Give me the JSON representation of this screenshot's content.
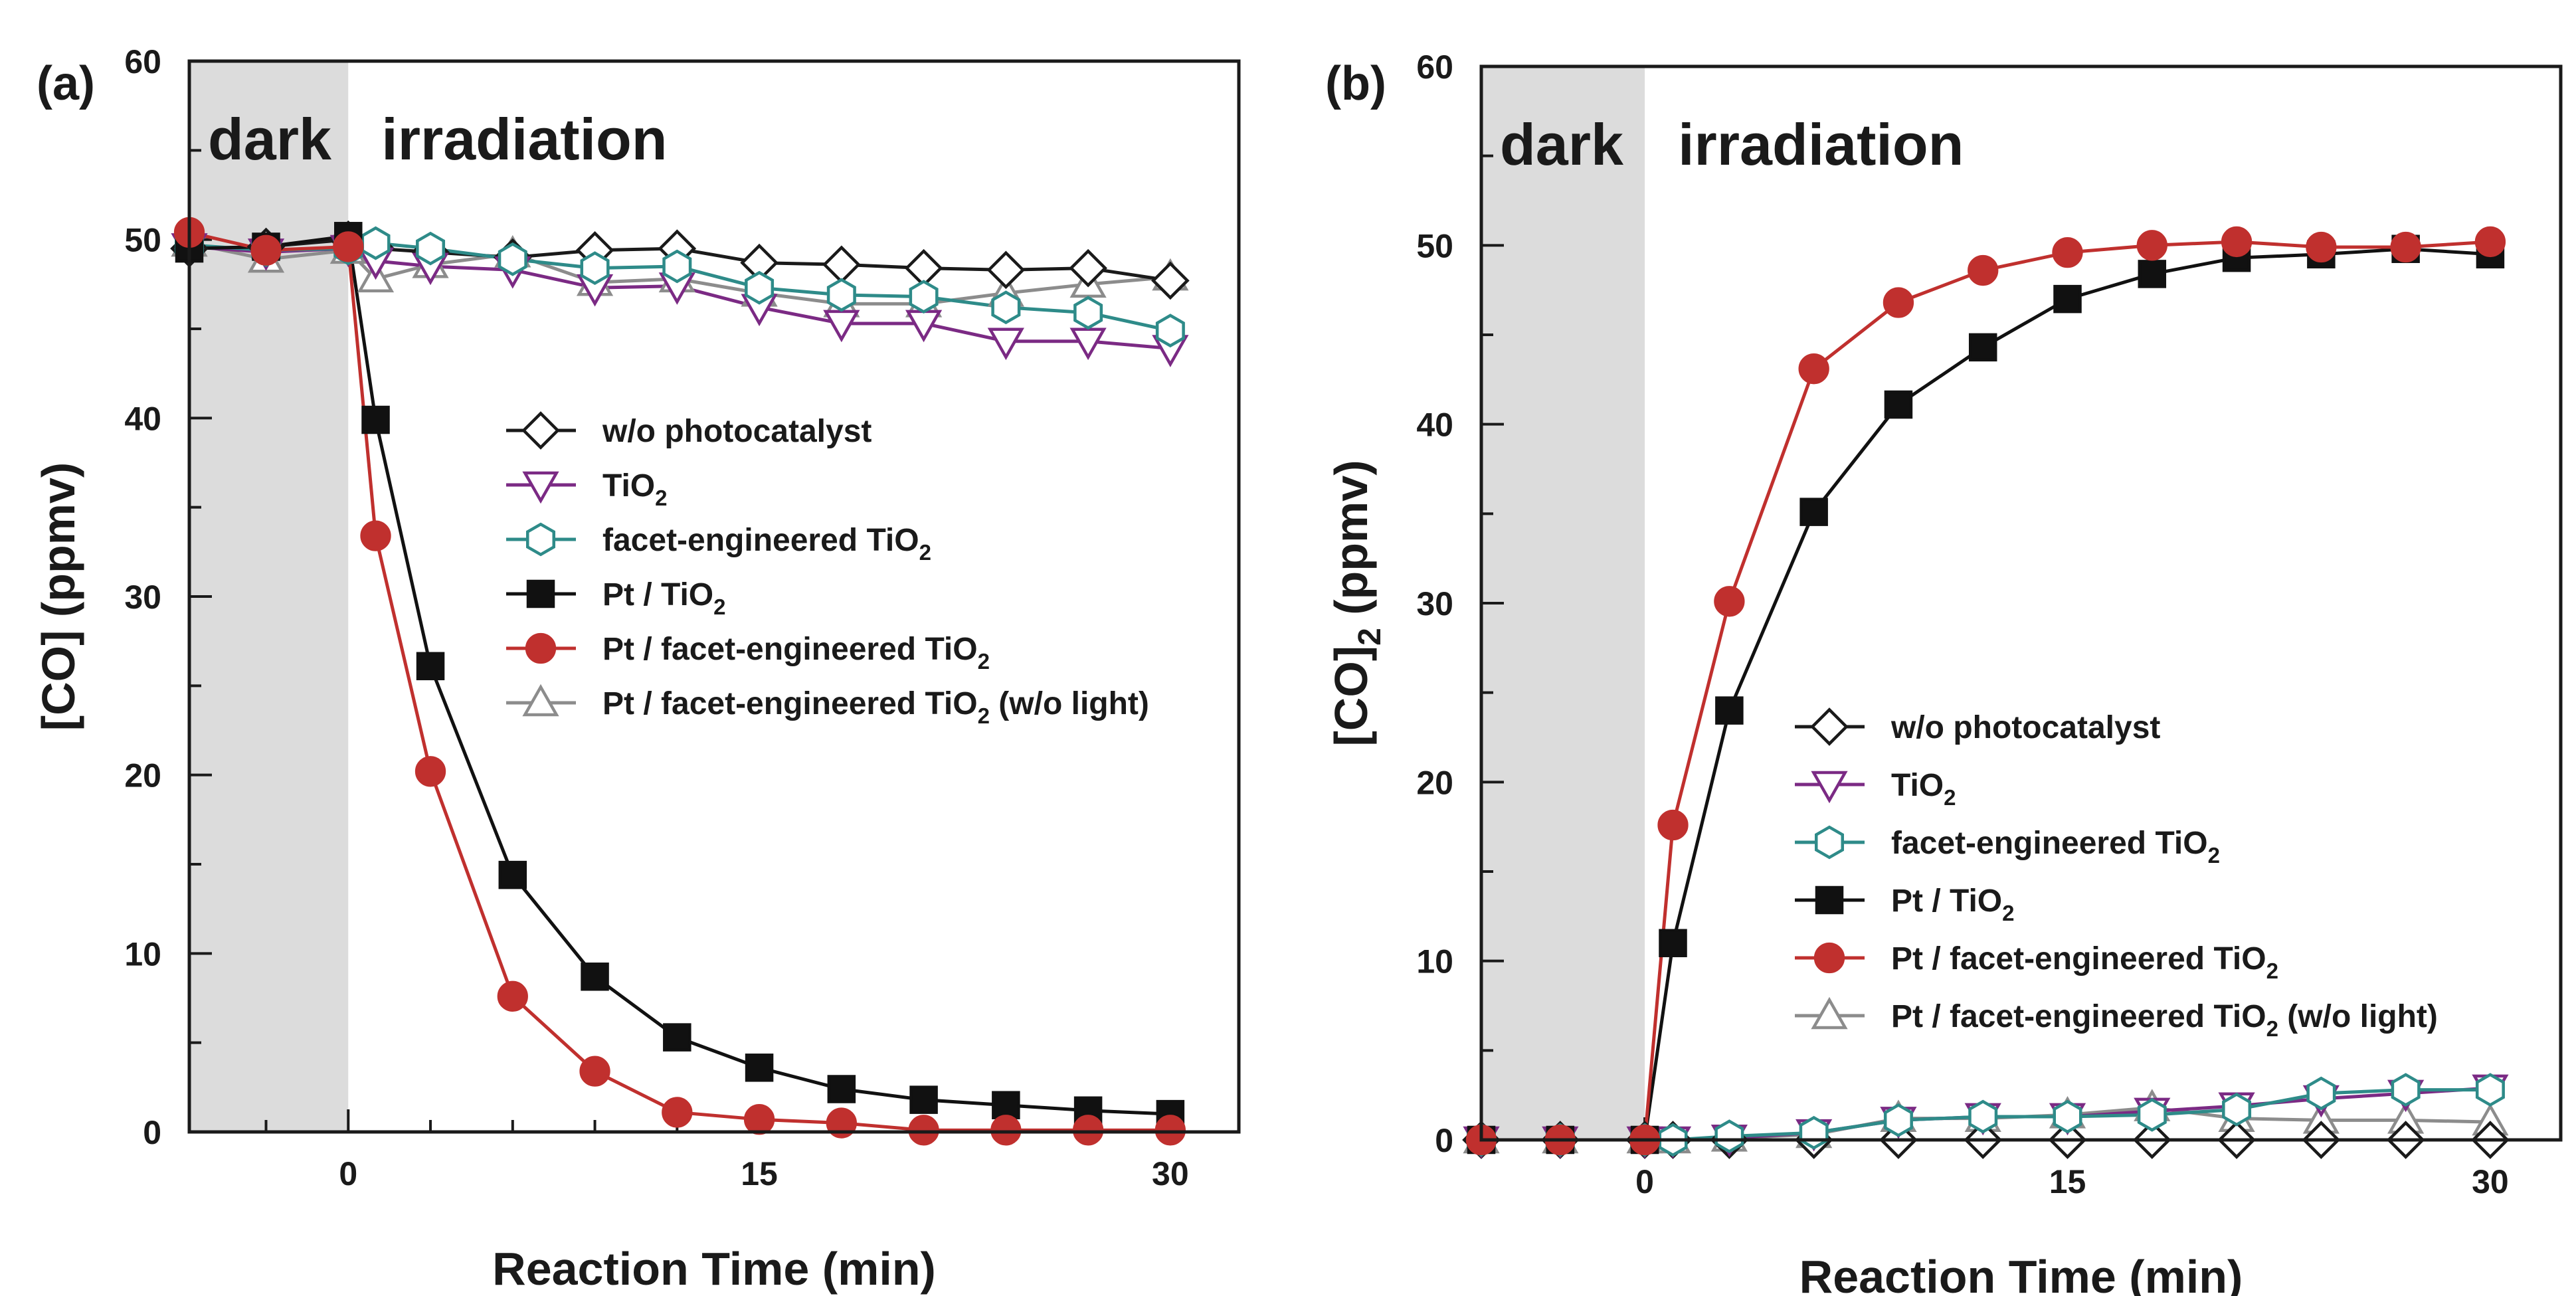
{
  "chart_data": [
    {
      "type": "line",
      "panel_label": "(a)",
      "region_labels": {
        "dark": "dark",
        "irradiation": "irradiation"
      },
      "xlabel": "Reaction Time (min)",
      "ylabel": "[CO] (ppmv)",
      "xlim": [
        -5.8,
        32.5
      ],
      "ylim": [
        0,
        60
      ],
      "xticks": [
        "0",
        "15",
        "30"
      ],
      "yticks": [
        "0",
        "10",
        "20",
        "30",
        "40",
        "50",
        "60"
      ],
      "shaded_x_range": [
        -5.8,
        0
      ],
      "legend_position": "center-right",
      "x": [
        -5.8,
        -3,
        0,
        1,
        3,
        6,
        9,
        12,
        15,
        18,
        21,
        24,
        27,
        30
      ],
      "series": [
        {
          "name": "w/o photocatalyst",
          "name_main": "w/o photocatalyst",
          "name_sub": "",
          "name_tail": "",
          "marker": "diamond",
          "color": "#1a1a1a",
          "fill": "#ffffff",
          "values": [
            49.5,
            49.6,
            50.0,
            49.5,
            49.3,
            49.0,
            49.4,
            49.5,
            48.7,
            48.6,
            48.4,
            48.3,
            48.4,
            47.7
          ]
        },
        {
          "name": "TiO2",
          "name_main": "TiO",
          "name_sub": "2",
          "name_tail": "",
          "marker": "triangle-down",
          "color": "#7b2a84",
          "fill": "#ffffff",
          "values": [
            49.6,
            49.3,
            49.5,
            48.8,
            48.5,
            48.3,
            47.3,
            47.4,
            46.2,
            45.3,
            45.3,
            44.3,
            44.3,
            43.9
          ]
        },
        {
          "name": "facet-engineered TiO2",
          "name_main": "facet-engineered TiO",
          "name_sub": "2",
          "name_tail": "",
          "marker": "hexagon",
          "color": "#2e8b89",
          "fill": "#ffffff",
          "values": [
            49.7,
            49.4,
            49.5,
            49.8,
            49.5,
            48.9,
            48.4,
            48.5,
            47.3,
            46.9,
            46.8,
            46.2,
            45.9,
            44.9
          ]
        },
        {
          "name": "Pt / TiO2",
          "name_main": "Pt / TiO",
          "name_sub": "2",
          "name_tail": "",
          "marker": "square",
          "color": "#111111",
          "fill": "#111111",
          "values": [
            49.5,
            49.6,
            50.2,
            39.9,
            26.1,
            14.4,
            8.7,
            5.3,
            3.6,
            2.4,
            1.8,
            1.5,
            1.2,
            1.0
          ]
        },
        {
          "name": "Pt / facet-engineered TiO2",
          "name_main": "Pt / facet-engineered TiO",
          "name_sub": "2",
          "name_tail": "",
          "marker": "circle",
          "color": "#c0302e",
          "fill": "#c0302e",
          "values": [
            50.4,
            49.4,
            49.6,
            33.4,
            20.2,
            7.6,
            3.4,
            1.1,
            0.7,
            0.5,
            0.1,
            0.1,
            0.1,
            0.1
          ]
        },
        {
          "name": "Pt / facet-engineered TiO2 (w/o light)",
          "name_main": "Pt / facet-engineered TiO",
          "name_sub": "2",
          "name_tail": " (w/o light)",
          "marker": "triangle-up",
          "color": "#8c8c8c",
          "fill": "#ffffff",
          "values": [
            49.8,
            48.9,
            49.4,
            47.8,
            48.6,
            49.2,
            47.6,
            47.8,
            47.0,
            46.4,
            46.4,
            47.0,
            47.5,
            47.9
          ]
        }
      ]
    },
    {
      "type": "line",
      "panel_label": "(b)",
      "region_labels": {
        "dark": "dark",
        "irradiation": "irradiation"
      },
      "xlabel": "Reaction Time (min)",
      "ylabel_main": "[CO]",
      "ylabel_sub": "2",
      "ylabel_tail": " (ppmv)",
      "xlim": [
        -5.8,
        32.5
      ],
      "ylim": [
        0,
        60
      ],
      "xticks": [
        "0",
        "15",
        "30"
      ],
      "yticks": [
        "0",
        "10",
        "20",
        "30",
        "40",
        "50",
        "60"
      ],
      "shaded_x_range": [
        -5.8,
        0
      ],
      "legend_position": "center-right",
      "x": [
        -5.8,
        -3,
        0,
        1,
        3,
        6,
        9,
        12,
        15,
        18,
        21,
        24,
        27,
        30
      ],
      "series": [
        {
          "name": "w/o photocatalyst",
          "name_main": "w/o photocatalyst",
          "name_sub": "",
          "name_tail": "",
          "marker": "diamond",
          "color": "#1a1a1a",
          "fill": "#ffffff",
          "values": [
            0,
            0,
            0,
            0,
            0,
            0,
            0,
            0,
            0,
            0,
            0,
            0,
            0,
            0
          ]
        },
        {
          "name": "TiO2",
          "name_main": "TiO",
          "name_sub": "2",
          "name_tail": "",
          "marker": "triangle-down",
          "color": "#7b2a84",
          "fill": "#ffffff",
          "values": [
            0,
            0,
            0,
            0,
            0.1,
            0.4,
            1.1,
            1.3,
            1.3,
            1.6,
            1.9,
            2.3,
            2.6,
            2.9
          ]
        },
        {
          "name": "facet-engineered TiO2",
          "name_main": "facet-engineered TiO",
          "name_sub": "2",
          "name_tail": "",
          "marker": "hexagon",
          "color": "#2e8b89",
          "fill": "#ffffff",
          "values": [
            0,
            0,
            0,
            0,
            0.2,
            0.4,
            1.1,
            1.3,
            1.3,
            1.4,
            1.7,
            2.6,
            2.8,
            2.8
          ]
        },
        {
          "name": "Pt / TiO2",
          "name_main": "Pt / TiO",
          "name_sub": "2",
          "name_tail": "",
          "marker": "square",
          "color": "#111111",
          "fill": "#111111",
          "values": [
            0,
            0,
            0,
            11.0,
            24.0,
            35.1,
            41.1,
            44.3,
            47.0,
            48.4,
            49.3,
            49.5,
            49.8,
            49.5
          ]
        },
        {
          "name": "Pt / facet-engineered TiO2",
          "name_main": "Pt / facet-engineered TiO",
          "name_sub": "2",
          "name_tail": "",
          "marker": "circle",
          "color": "#c0302e",
          "fill": "#c0302e",
          "values": [
            0,
            0,
            0,
            17.6,
            30.1,
            43.1,
            46.8,
            48.6,
            49.6,
            50.0,
            50.2,
            49.9,
            49.9,
            50.2
          ]
        },
        {
          "name": "Pt / facet-engineered TiO2 (w/o light)",
          "name_main": "Pt / facet-engineered TiO",
          "name_sub": "2",
          "name_tail": " (w/o light)",
          "marker": "triangle-up",
          "color": "#8c8c8c",
          "fill": "#ffffff",
          "values": [
            0,
            0,
            0,
            0,
            0.1,
            0.3,
            1.2,
            1.2,
            1.4,
            1.8,
            1.2,
            1.1,
            1.1,
            1.0
          ]
        }
      ]
    }
  ]
}
